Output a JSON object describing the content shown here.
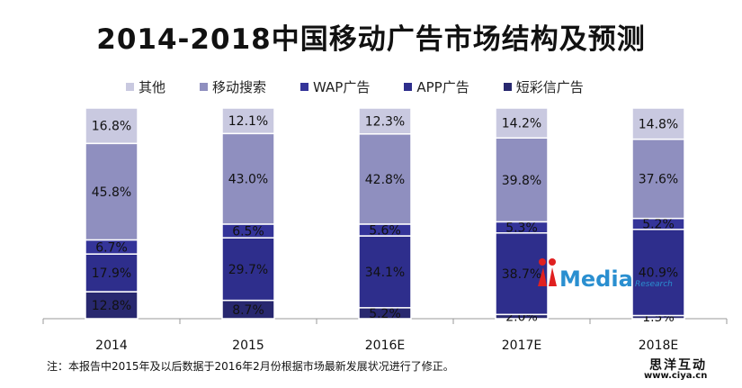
{
  "chart_data": {
    "type": "bar",
    "stacked": true,
    "title": "2014-2018中国移动广告市场结构及预测",
    "categories": [
      "2014",
      "2015",
      "2016E",
      "2017E",
      "2018E"
    ],
    "ylim": [
      0,
      100
    ],
    "legend_position": "top",
    "series": [
      {
        "name": "短彩信广告",
        "color": "#28286f",
        "values": [
          12.8,
          8.7,
          5.2,
          2.0,
          1.5
        ]
      },
      {
        "name": "APP广告",
        "color": "#2e2e8c",
        "values": [
          17.9,
          29.7,
          34.1,
          38.7,
          40.9
        ]
      },
      {
        "name": "WAP广告",
        "color": "#343499",
        "values": [
          6.7,
          6.5,
          5.6,
          5.3,
          5.2
        ]
      },
      {
        "name": "移动搜索",
        "color": "#8f8fbf",
        "values": [
          45.8,
          43.0,
          42.8,
          39.8,
          37.6
        ]
      },
      {
        "name": "其他",
        "color": "#c9c9e0",
        "values": [
          16.8,
          12.1,
          12.3,
          14.2,
          14.8
        ]
      }
    ],
    "legend_order": [
      "其他",
      "移动搜索",
      "WAP广告",
      "APP广告",
      "短彩信广告"
    ]
  },
  "note": "注：本报告中2015年及以后数据于2016年2月份根据市场最新发展状况进行了修正。",
  "watermark": {
    "logo": "iMedia Research 艾媒咨询",
    "site_cn": "思洋互动",
    "site_url": "www.ciya.cn"
  }
}
